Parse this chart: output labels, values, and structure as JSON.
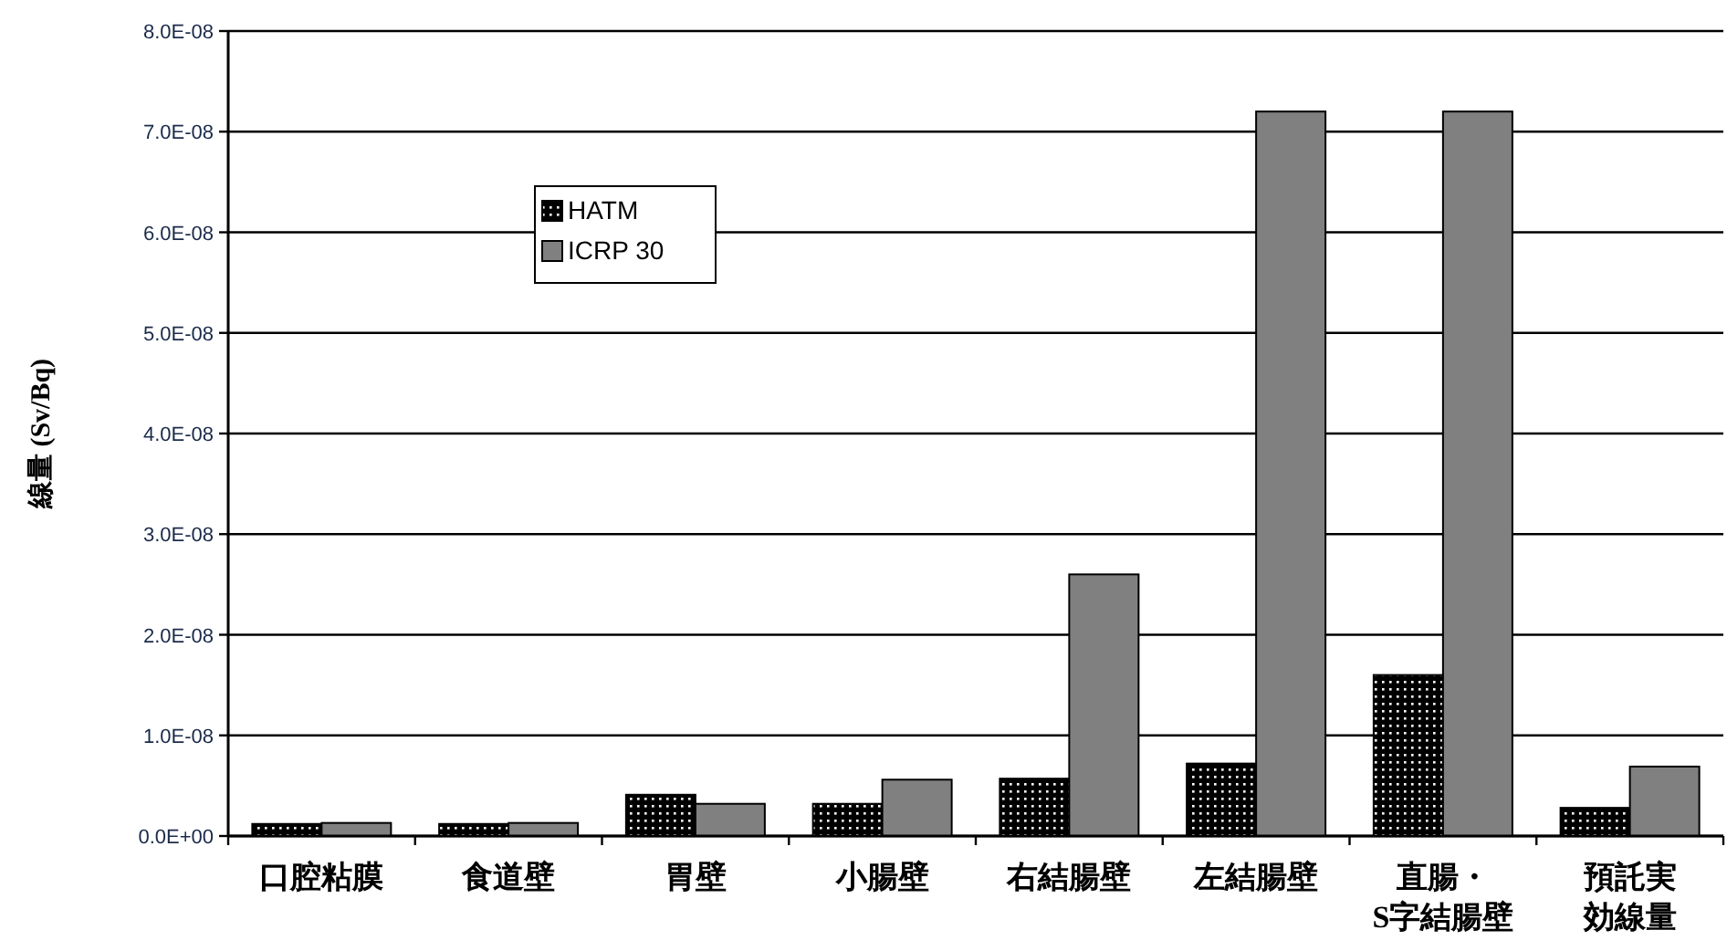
{
  "chart_data": {
    "type": "bar",
    "ylabel": "線量 (Sv/Bq)",
    "categories": [
      "口腔粘膜",
      "食道壁",
      "胃壁",
      "小腸壁",
      "右結腸壁",
      "左結腸壁",
      "直腸・\nS字結腸壁",
      "預託実効線量"
    ],
    "series": [
      {
        "name": "HATM",
        "color": "#000000",
        "values": [
          1.2e-09,
          1.2e-09,
          4.1e-09,
          3.2e-09,
          5.7e-09,
          7.2e-09,
          1.6e-08,
          2.8e-09
        ]
      },
      {
        "name": "ICRP 30",
        "color": "#808080",
        "values": [
          1.3e-09,
          1.3e-09,
          3.2e-09,
          5.6e-09,
          2.6e-08,
          7.2e-08,
          7.2e-08,
          6.9e-09
        ]
      }
    ],
    "ylim": [
      0,
      8e-08
    ],
    "yticks": [
      {
        "value": 0,
        "label": "0.0E+00"
      },
      {
        "value": 1e-08,
        "label": "1.0E-08"
      },
      {
        "value": 2e-08,
        "label": "2.0E-08"
      },
      {
        "value": 3e-08,
        "label": "3.0E-08"
      },
      {
        "value": 4e-08,
        "label": "4.0E-08"
      },
      {
        "value": 5e-08,
        "label": "5.0E-08"
      },
      {
        "value": 6e-08,
        "label": "6.0E-08"
      },
      {
        "value": 7e-08,
        "label": "7.0E-08"
      },
      {
        "value": 8e-08,
        "label": "8.0E-08"
      }
    ],
    "grid": "y",
    "legend": "top left"
  }
}
